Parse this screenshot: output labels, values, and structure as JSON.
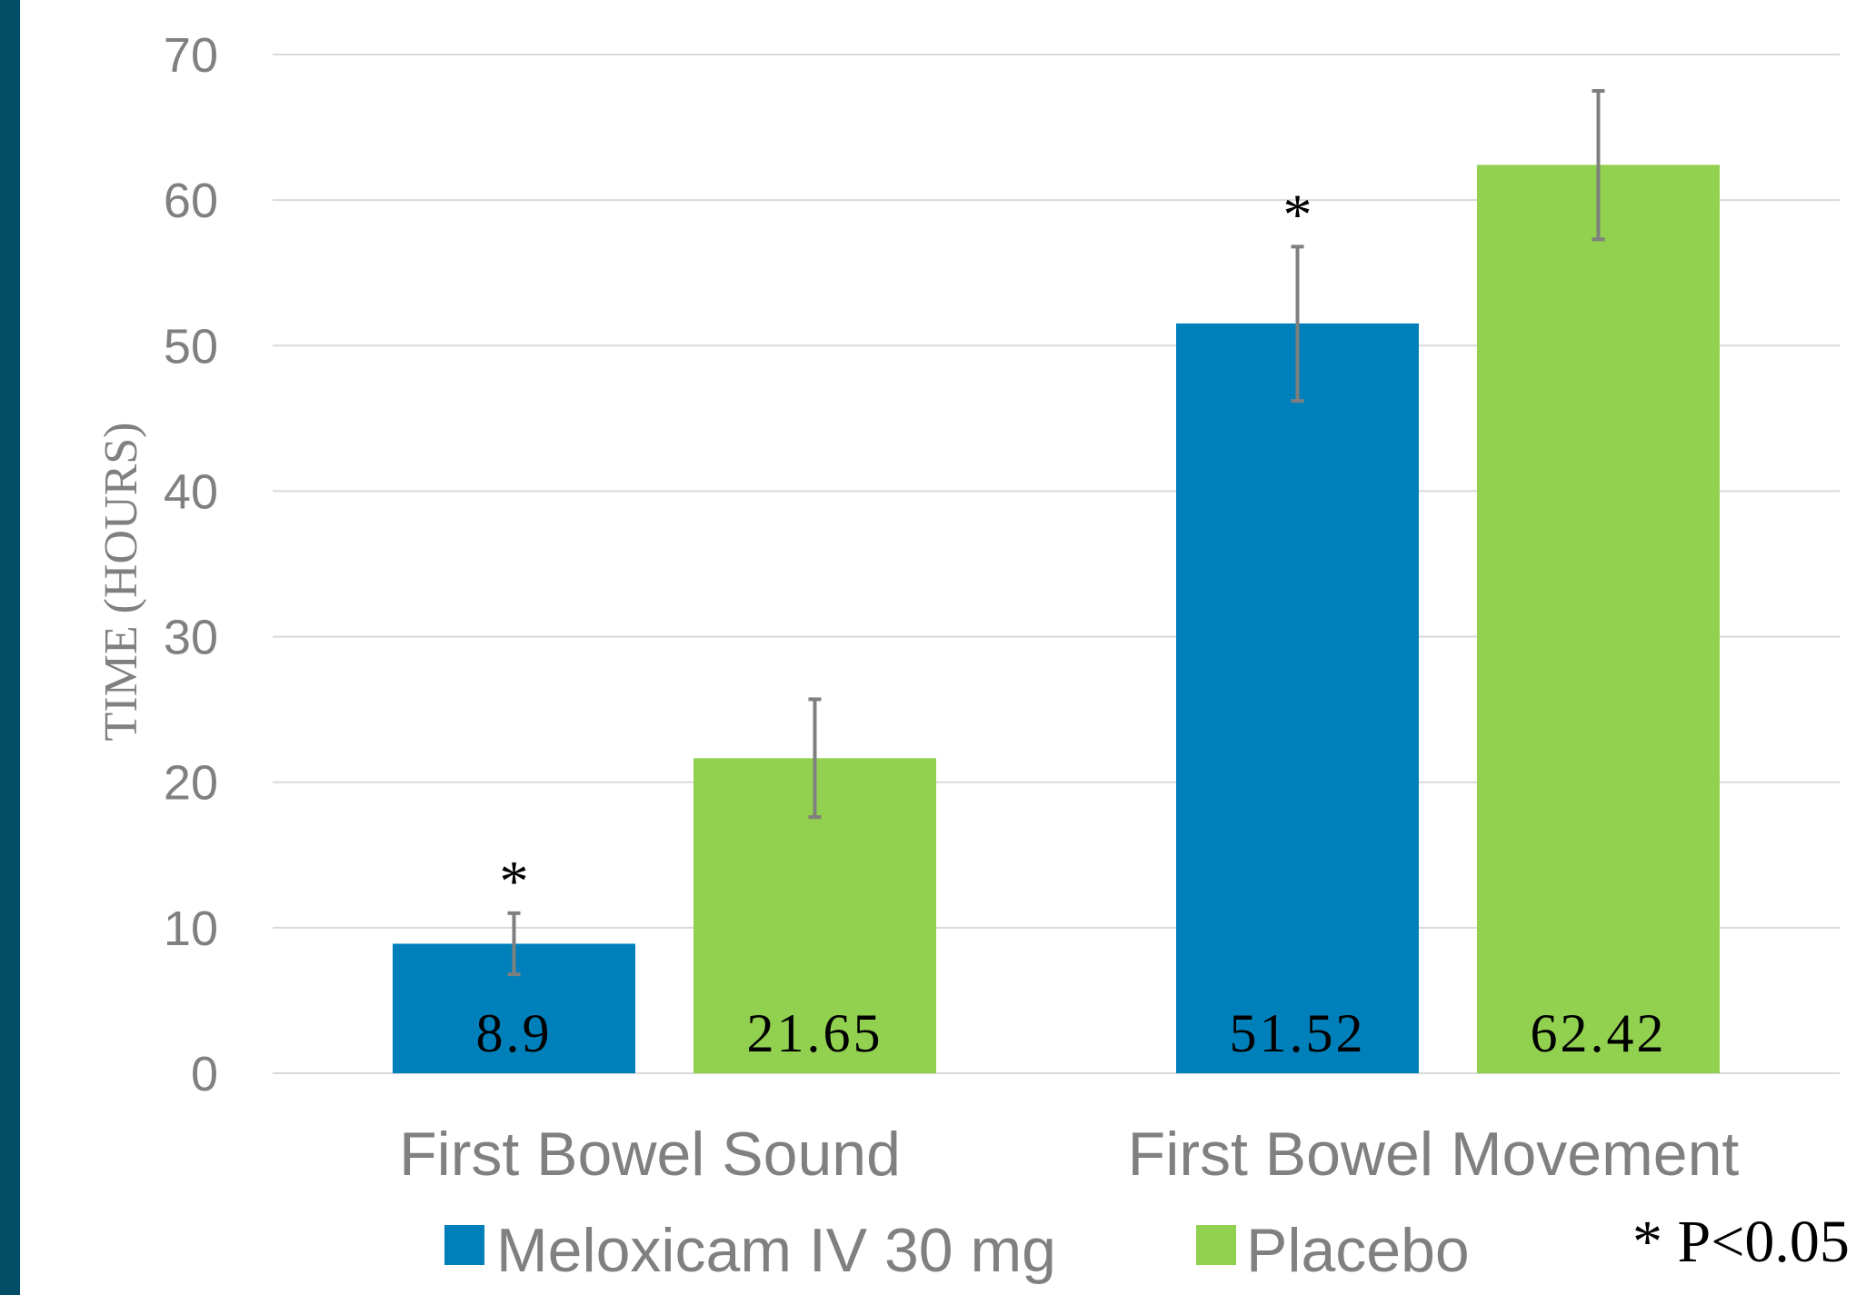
{
  "colors": {
    "strip": "#024E66",
    "series1": "#0080BA",
    "series2": "#92D050",
    "grid": "#D9D9D9",
    "errorbar": "#7F7F7F"
  },
  "chart_data": {
    "type": "bar",
    "title": "",
    "xlabel": "",
    "ylabel": "TIME (HOURS)",
    "ylim": [
      0,
      70
    ],
    "yticks": [
      0,
      10,
      20,
      30,
      40,
      50,
      60,
      70
    ],
    "grid": true,
    "legend_position": "bottom",
    "categories": [
      "First Bowel Sound",
      "First Bowel Movement"
    ],
    "series": [
      {
        "name": "Meloxicam IV 30 mg",
        "values": [
          8.9,
          51.52
        ],
        "data_labels": [
          "8.9",
          "51.52"
        ],
        "error_low": [
          6.8,
          46.2
        ],
        "error_high": [
          11.0,
          56.8
        ],
        "significance": [
          "*",
          "*"
        ]
      },
      {
        "name": "Placebo",
        "values": [
          21.65,
          62.42
        ],
        "data_labels": [
          "21.65",
          "62.42"
        ],
        "error_low": [
          17.6,
          57.3
        ],
        "error_high": [
          25.7,
          67.5
        ],
        "significance": [
          "",
          ""
        ]
      }
    ],
    "note": "* P<0.05"
  }
}
